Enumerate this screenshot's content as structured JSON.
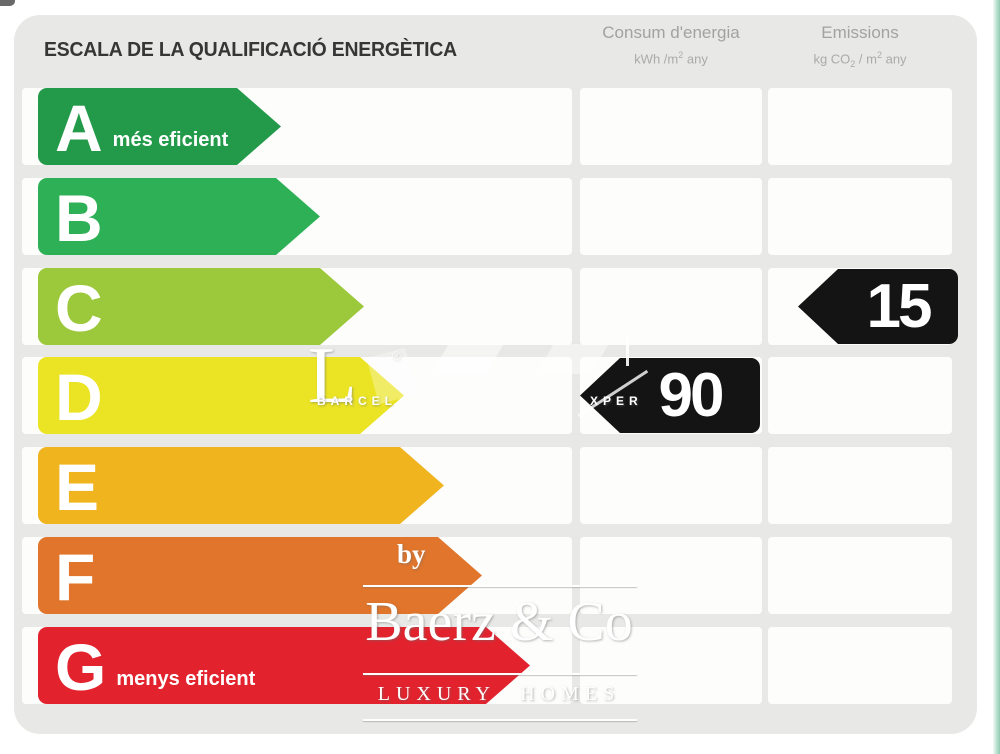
{
  "title": "ESCALA DE LA QUALIFICACIÓ ENERGÈTICA",
  "columns": {
    "consum": {
      "label": "Consum d'energia",
      "unit_prefix": "kWh /m",
      "unit_sup": "2",
      "unit_suffix": " any"
    },
    "emissions": {
      "label": "Emissions",
      "unit_prefix": "kg CO",
      "unit_sub": "2",
      "unit_mid": " / m",
      "unit_sup": "2",
      "unit_suffix": " any"
    }
  },
  "scale": {
    "rows": [
      {
        "letter": "A",
        "note": "més eficient",
        "color": "#229a49",
        "arrow_len": 243
      },
      {
        "letter": "B",
        "note": "",
        "color": "#2eb156",
        "arrow_len": 282
      },
      {
        "letter": "C",
        "note": "",
        "color": "#9cc83b",
        "arrow_len": 326
      },
      {
        "letter": "D",
        "note": "",
        "color": "#ebe424",
        "arrow_len": 366
      },
      {
        "letter": "E",
        "note": "",
        "color": "#efb41e",
        "arrow_len": 406
      },
      {
        "letter": "F",
        "note": "",
        "color": "#e0752b",
        "arrow_len": 444
      },
      {
        "letter": "G",
        "note": "menys eficient",
        "color": "#e2232e",
        "arrow_len": 492
      }
    ]
  },
  "ratings": {
    "consum": {
      "value": "90",
      "row_letter": "D"
    },
    "emissions": {
      "value": "15",
      "row_letter": "C"
    }
  },
  "watermark": {
    "by": "by",
    "brand": "Baerz & Co",
    "subtitle": "LUXURY HOMES",
    "frag_letter": "L",
    "frag_reg": "®",
    "frag_left": "BARCEL",
    "frag_right": "XPER"
  },
  "colors": {
    "panel_bg": "#e8e8e6",
    "row_bg": "#fdfdfc",
    "rating_arrow": "#141414",
    "header_text": "#a2a2a2",
    "title_text": "#363636",
    "teal_edge": "#8fcab3"
  },
  "chart_data": {
    "type": "bar",
    "title": "ESCALA DE LA QUALIFICACIÓ ENERGÈTICA",
    "categories": [
      "A",
      "B",
      "C",
      "D",
      "E",
      "F",
      "G"
    ],
    "series": [
      {
        "name": "Consum d'energia (kWh/m2 any)",
        "values": [
          null,
          null,
          null,
          90,
          null,
          null,
          null
        ]
      },
      {
        "name": "Emissions (kg CO2/m2 any)",
        "values": [
          null,
          null,
          15,
          null,
          null,
          null,
          null
        ]
      }
    ],
    "annotations": [
      "A = més eficient",
      "G = menys eficient"
    ],
    "bar_colors": [
      "#229a49",
      "#2eb156",
      "#9cc83b",
      "#ebe424",
      "#efb41e",
      "#e0752b",
      "#e2232e"
    ],
    "legend_position": "top",
    "grid": false
  }
}
